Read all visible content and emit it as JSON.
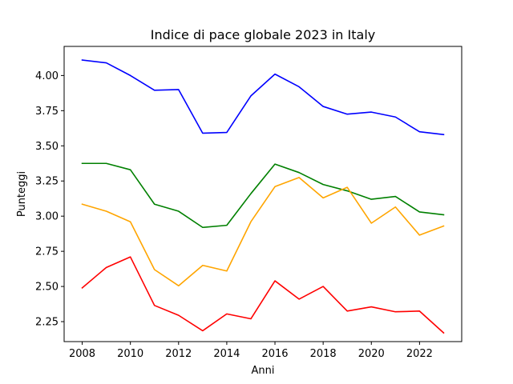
{
  "chart_data": {
    "type": "line",
    "title": "Indice di pace globale 2023 in Italy",
    "xlabel": "Anni",
    "ylabel": "Punteggi",
    "x": [
      2008,
      2009,
      2010,
      2011,
      2012,
      2013,
      2014,
      2015,
      2016,
      2017,
      2018,
      2019,
      2020,
      2021,
      2022,
      2023
    ],
    "xlim": [
      2007.25,
      2023.75
    ],
    "ylim": [
      2.108,
      4.207
    ],
    "xticks": [
      2008,
      2010,
      2012,
      2014,
      2016,
      2018,
      2020,
      2022
    ],
    "yticks": [
      "2.25",
      "2.50",
      "2.75",
      "3.00",
      "3.25",
      "3.50",
      "3.75",
      "4.00"
    ],
    "grid": false,
    "series": [
      {
        "color": "#0000ff",
        "values": [
          4.11,
          4.09,
          4.0,
          3.895,
          3.9,
          3.59,
          3.595,
          3.855,
          4.01,
          3.92,
          3.78,
          3.725,
          3.74,
          3.705,
          3.6,
          3.58
        ]
      },
      {
        "color": "#008000",
        "values": [
          3.375,
          3.375,
          3.33,
          3.085,
          3.035,
          2.92,
          2.935,
          3.16,
          3.37,
          3.31,
          3.225,
          3.18,
          3.12,
          3.14,
          3.03,
          3.01
        ]
      },
      {
        "color": "#ffa500",
        "values": [
          3.085,
          3.035,
          2.96,
          2.62,
          2.505,
          2.65,
          2.61,
          2.96,
          3.21,
          3.275,
          3.13,
          3.205,
          2.95,
          3.065,
          2.865,
          2.93
        ]
      },
      {
        "color": "#ff0000",
        "values": [
          2.49,
          2.635,
          2.71,
          2.365,
          2.295,
          2.185,
          2.305,
          2.27,
          2.54,
          2.41,
          2.5,
          2.325,
          2.355,
          2.32,
          2.325,
          2.17
        ]
      }
    ]
  }
}
